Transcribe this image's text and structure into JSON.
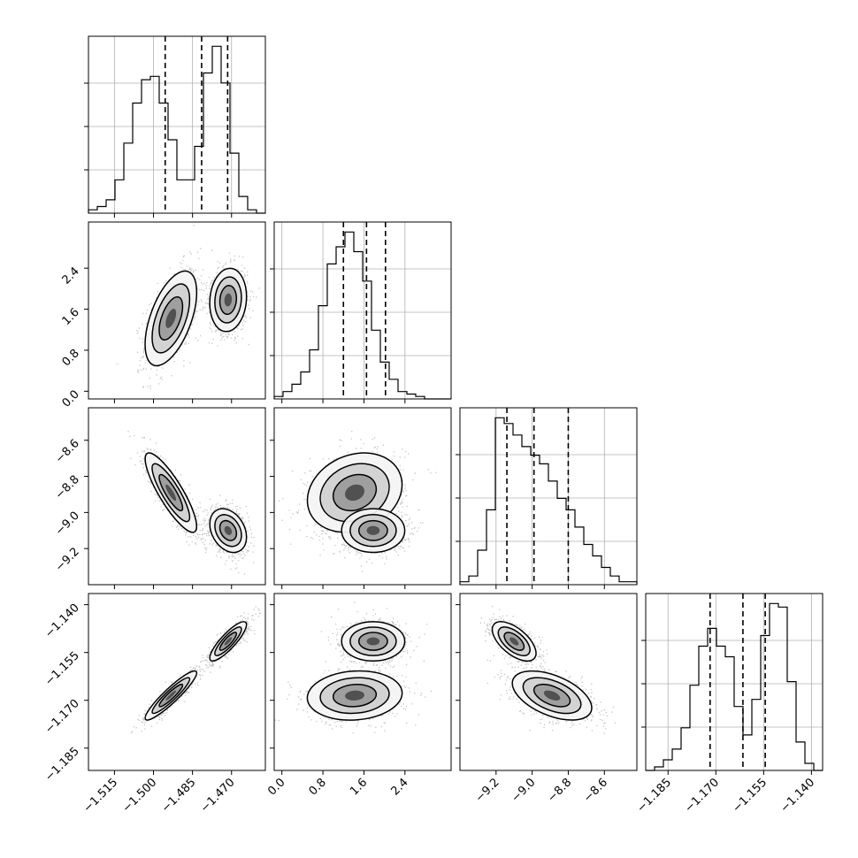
{
  "chart_data": {
    "type": "corner",
    "grid": true,
    "parameters": [
      {
        "id": "p0",
        "range": [
          -1.525,
          -1.457
        ],
        "ticks": [
          "−1.515",
          "−1.500",
          "−1.485",
          "−1.470"
        ],
        "tick_values": [
          -1.515,
          -1.5,
          -1.485,
          -1.47
        ],
        "quantiles": [
          -1.4955,
          -1.4815,
          -1.4715
        ],
        "hist_counts": [
          1,
          2,
          4,
          10,
          21,
          33,
          40,
          41,
          33,
          22,
          10,
          10,
          20,
          42,
          50,
          39,
          18,
          5,
          1,
          0
        ],
        "modes": [
          {
            "center": -1.4933,
            "sd": 0.0045,
            "weight": 0.5
          },
          {
            "center": -1.4713,
            "sd": 0.0032,
            "weight": 0.5
          }
        ]
      },
      {
        "id": "p1",
        "range": [
          -0.15,
          3.3
        ],
        "ticks": [
          "0.0",
          "0.8",
          "1.6",
          "2.4"
        ],
        "tick_values": [
          0.0,
          0.8,
          1.6,
          2.4
        ],
        "quantiles": [
          1.2,
          1.65,
          2.02
        ],
        "hist_counts": [
          1,
          3,
          6,
          11,
          20,
          38,
          55,
          62,
          68,
          60,
          48,
          28,
          15,
          8,
          3,
          2,
          1,
          0,
          0,
          0
        ],
        "modes": [
          {
            "center": 1.42,
            "sd": 0.42,
            "weight": 0.5
          },
          {
            "center": 1.78,
            "sd": 0.28,
            "weight": 0.5
          }
        ]
      },
      {
        "id": "p2",
        "range": [
          -9.4,
          -8.42
        ],
        "ticks": [
          "−9.2",
          "−9.0",
          "−8.8",
          "−8.6"
        ],
        "tick_values": [
          -9.2,
          -9.0,
          -8.8,
          -8.6
        ],
        "quantiles": [
          -9.14,
          -8.99,
          -8.8
        ],
        "hist_counts": [
          1,
          3,
          12,
          26,
          58,
          56,
          52,
          48,
          45,
          42,
          36,
          30,
          26,
          20,
          14,
          10,
          6,
          3,
          1,
          1
        ],
        "modes": [
          {
            "center": -8.89,
            "sd": 0.1,
            "weight": 0.5
          },
          {
            "center": -9.1,
            "sd": 0.055,
            "weight": 0.5
          }
        ]
      },
      {
        "id": "p3",
        "range": [
          -1.192,
          -1.1365
        ],
        "ticks": [
          "−1.185",
          "−1.170",
          "−1.155",
          "−1.140"
        ],
        "tick_values": [
          -1.185,
          -1.17,
          -1.155,
          -1.14
        ],
        "quantiles": [
          -1.1718,
          -1.1615,
          -1.1545
        ],
        "hist_counts": [
          0,
          1,
          3,
          6,
          12,
          24,
          35,
          40,
          35,
          32,
          18,
          10,
          20,
          38,
          47,
          46,
          25,
          8,
          2,
          0
        ],
        "modes": [
          {
            "center": -1.1685,
            "sd": 0.0035,
            "weight": 0.5
          },
          {
            "center": -1.1515,
            "sd": 0.0028,
            "weight": 0.5
          }
        ]
      }
    ],
    "pairs": [
      {
        "row": 1,
        "col": 0,
        "clusters": [
          {
            "cx": -1.4933,
            "cy": 1.42,
            "sx": 0.0045,
            "sy": 0.42,
            "rho": 0.55
          },
          {
            "cx": -1.4713,
            "cy": 1.78,
            "sx": 0.0032,
            "sy": 0.28,
            "rho": 0.1
          }
        ]
      },
      {
        "row": 2,
        "col": 0,
        "clusters": [
          {
            "cx": -1.4933,
            "cy": -8.89,
            "sx": 0.0045,
            "sy": 0.1,
            "rho": -0.85
          },
          {
            "cx": -1.4713,
            "cy": -9.1,
            "sx": 0.0032,
            "sy": 0.055,
            "rho": -0.3
          }
        ]
      },
      {
        "row": 2,
        "col": 1,
        "clusters": [
          {
            "cx": 1.42,
            "cy": -8.89,
            "sx": 0.42,
            "sy": 0.1,
            "rho": 0.2
          },
          {
            "cx": 1.78,
            "cy": -9.1,
            "sx": 0.28,
            "sy": 0.055,
            "rho": 0.0
          }
        ]
      },
      {
        "row": 3,
        "col": 0,
        "clusters": [
          {
            "cx": -1.4933,
            "cy": -1.1685,
            "sx": 0.0045,
            "sy": 0.0035,
            "rho": 0.92
          },
          {
            "cx": -1.4713,
            "cy": -1.1515,
            "sx": 0.0032,
            "sy": 0.0028,
            "rho": 0.85
          }
        ]
      },
      {
        "row": 3,
        "col": 1,
        "clusters": [
          {
            "cx": 1.42,
            "cy": -1.1685,
            "sx": 0.42,
            "sy": 0.0035,
            "rho": 0.1
          },
          {
            "cx": 1.78,
            "cy": -1.1515,
            "sx": 0.28,
            "sy": 0.0028,
            "rho": 0.0
          }
        ]
      },
      {
        "row": 3,
        "col": 2,
        "clusters": [
          {
            "cx": -8.89,
            "cy": -1.1685,
            "sx": 0.1,
            "sy": 0.0035,
            "rho": -0.5
          },
          {
            "cx": -9.1,
            "cy": -1.1515,
            "sx": 0.055,
            "sy": 0.0028,
            "rho": -0.6
          }
        ]
      }
    ],
    "colors": {
      "lines": "#000000",
      "grid": "#b0b0b0",
      "points": "#555555"
    }
  }
}
